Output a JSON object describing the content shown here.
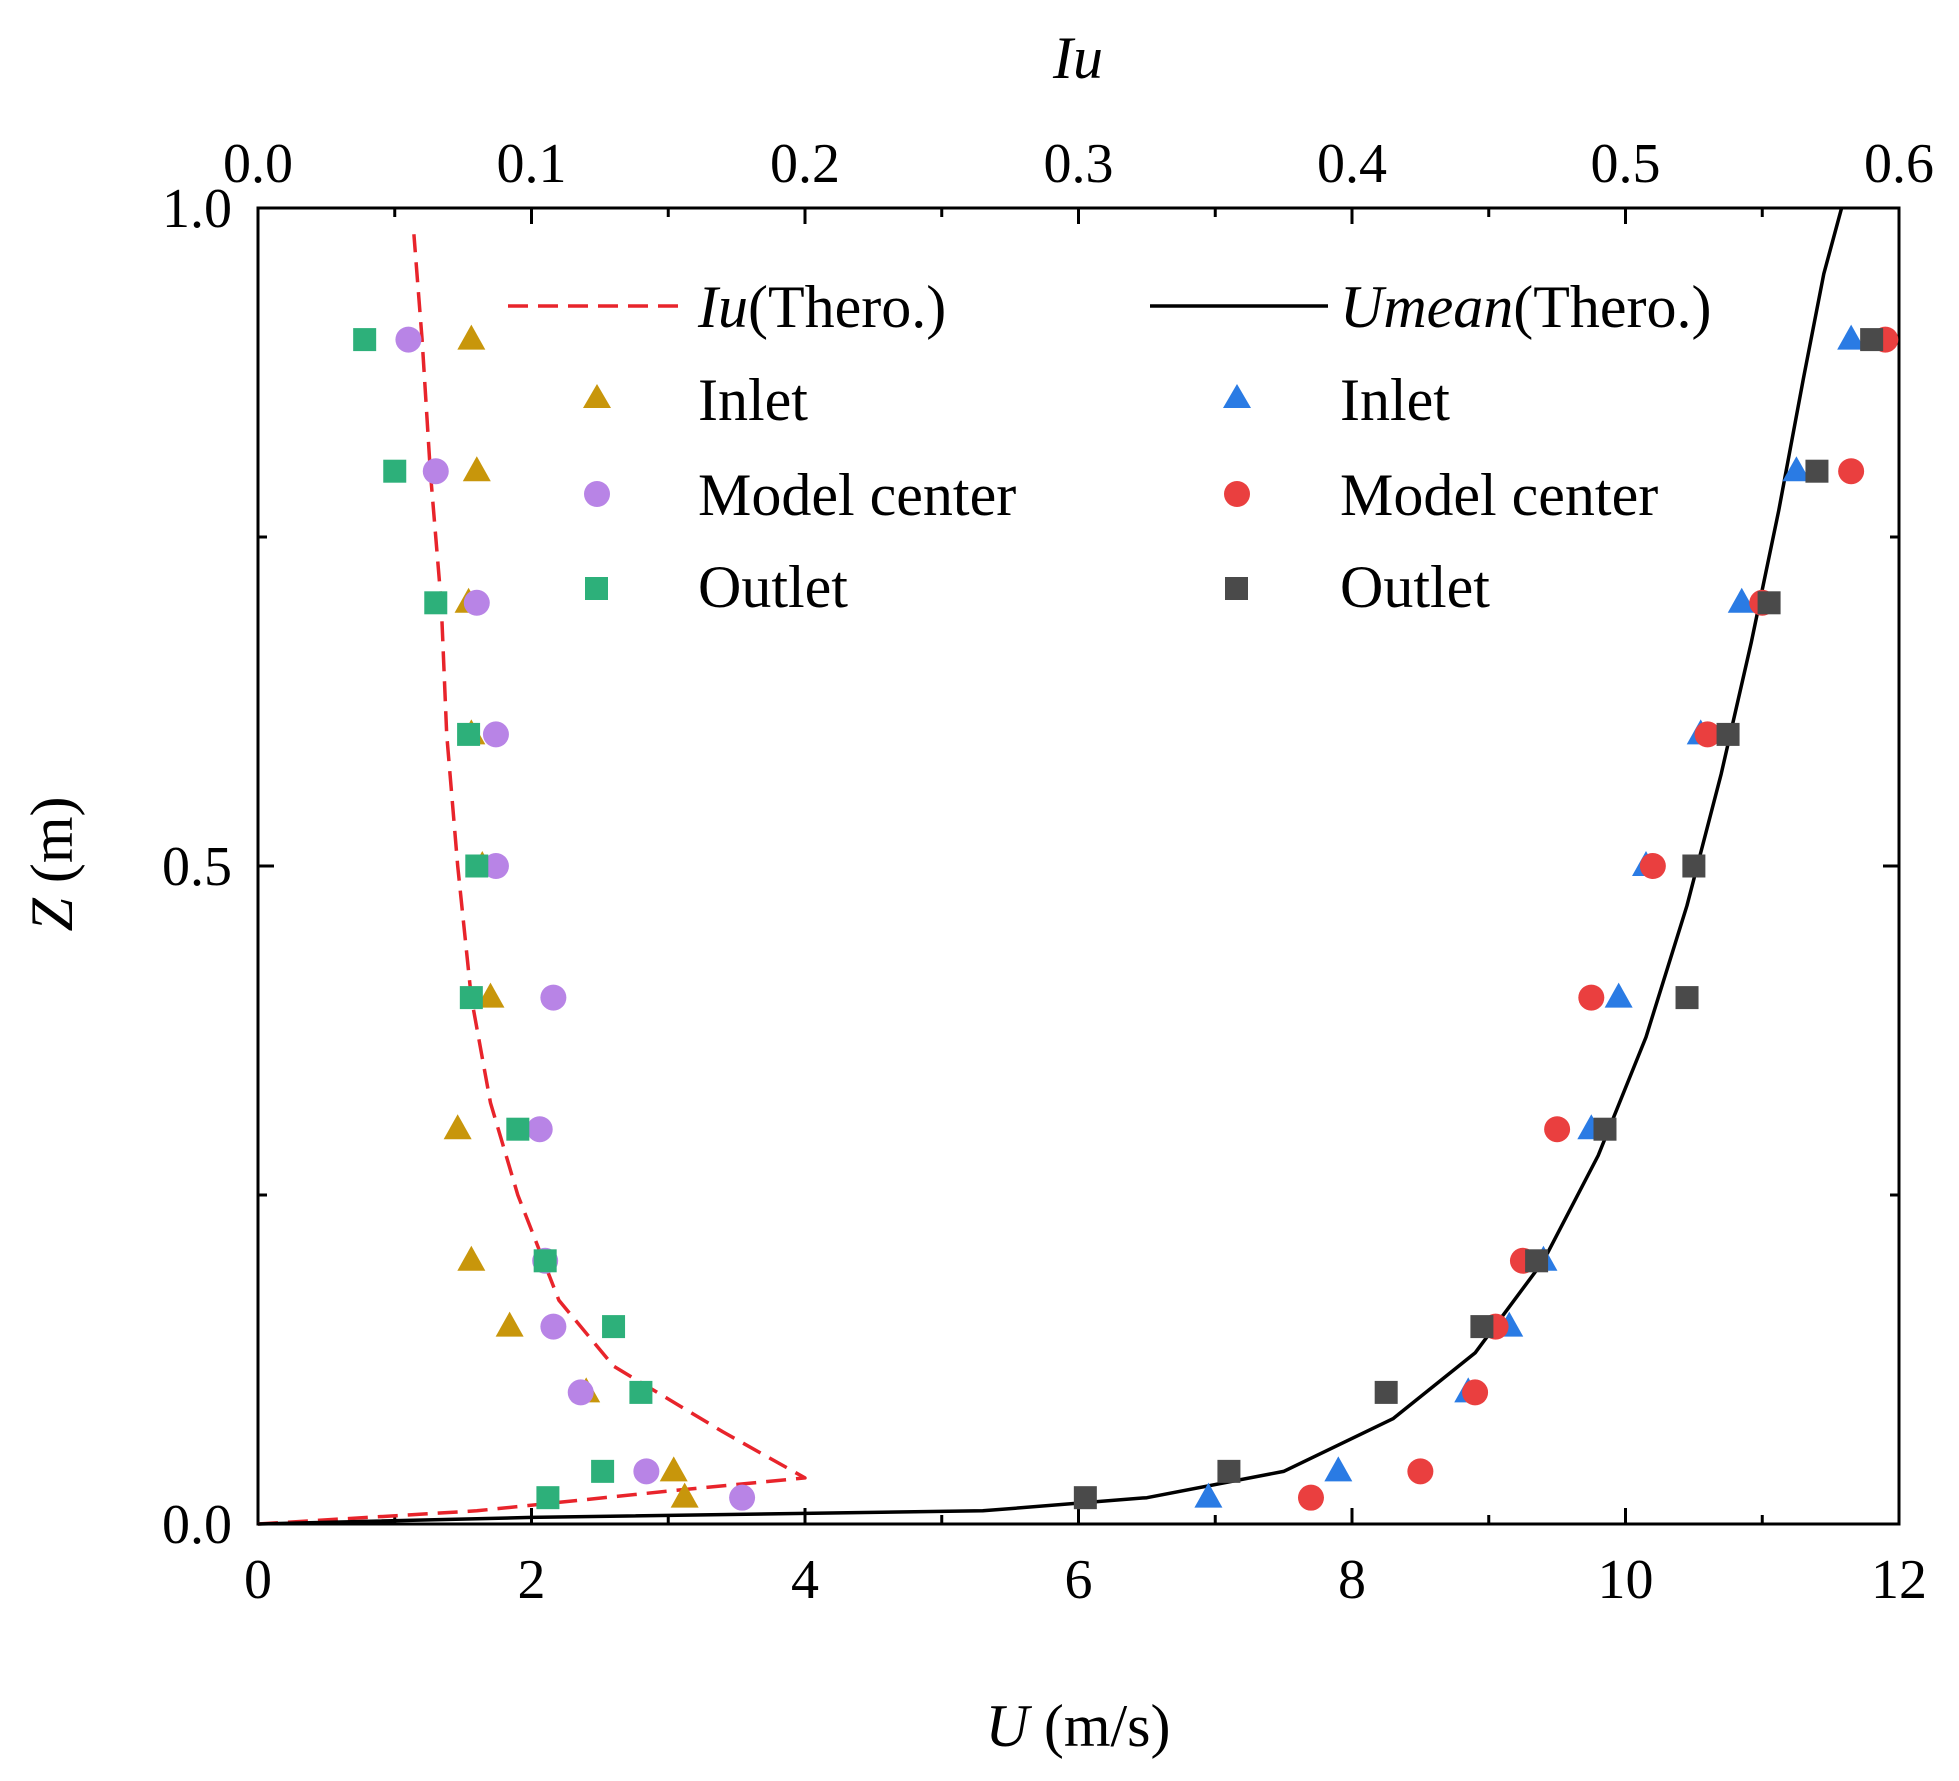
{
  "chart_data": {
    "type": "scatter",
    "title": "",
    "x_bottom": {
      "label_var": "U",
      "label_unit": " (m/s)",
      "range": [
        0,
        12
      ],
      "ticks": [
        0,
        2,
        4,
        6,
        8,
        10,
        12
      ],
      "tick_labels": [
        "0",
        "2",
        "4",
        "6",
        "8",
        "10",
        "12"
      ]
    },
    "x_top": {
      "label": "Iu",
      "range": [
        0,
        0.6
      ],
      "ticks": [
        0,
        0.1,
        0.2,
        0.3,
        0.4,
        0.5,
        0.6
      ],
      "tick_labels": [
        "0.0",
        "0.1",
        "0.2",
        "0.3",
        "0.4",
        "0.5",
        "0.6"
      ]
    },
    "y": {
      "label_var": "Z",
      "label_unit": " (m)",
      "range": [
        0,
        1
      ],
      "ticks": [
        0,
        0.5,
        1
      ],
      "tick_labels": [
        "0.0",
        "0.5",
        "1.0"
      ]
    },
    "legend": {
      "placement": "top",
      "iu_theory": {
        "var": "Iu",
        "suffix": "(Thero.)"
      },
      "umean_theory": {
        "var": "Umean",
        "suffix": "(Thero.)"
      },
      "inlet_label": "Inlet",
      "model_center_label": "Model center",
      "outlet_label": "Outlet"
    },
    "series": [
      {
        "name": "Iu(Thero.)",
        "axis": "top",
        "kind": "line",
        "style": "dashed",
        "color": "#e8242b",
        "x": [
          0.0,
          0.08,
          0.15,
          0.2,
          0.17,
          0.13,
          0.11,
          0.095,
          0.085,
          0.078,
          0.073,
          0.069,
          0.067,
          0.063,
          0.06,
          0.057
        ],
        "y": [
          0.0,
          0.01,
          0.025,
          0.035,
          0.07,
          0.12,
          0.17,
          0.25,
          0.32,
          0.4,
          0.5,
          0.6,
          0.7,
          0.8,
          0.9,
          0.98
        ]
      },
      {
        "name": "Umean(Thero.)",
        "axis": "bottom",
        "kind": "line",
        "style": "solid",
        "color": "#000000",
        "x": [
          0.0,
          2.0,
          5.3,
          6.5,
          7.5,
          8.3,
          8.9,
          9.4,
          9.8,
          10.15,
          10.45,
          10.7,
          10.92,
          11.12,
          11.3,
          11.45,
          11.58
        ],
        "y": [
          0.0,
          0.005,
          0.01,
          0.02,
          0.04,
          0.08,
          0.13,
          0.2,
          0.28,
          0.37,
          0.47,
          0.57,
          0.67,
          0.77,
          0.87,
          0.95,
          1.0
        ]
      },
      {
        "name": "Inlet (Iu)",
        "axis": "top",
        "kind": "marker",
        "marker": "triangle",
        "color": "#c8960b",
        "x": [
          0.078,
          0.08,
          0.077,
          0.078,
          0.082,
          0.085,
          0.073,
          0.078,
          0.092,
          0.12,
          0.152,
          0.156
        ],
        "y": [
          0.9,
          0.8,
          0.7,
          0.6,
          0.5,
          0.4,
          0.3,
          0.2,
          0.15,
          0.1,
          0.04,
          0.02
        ]
      },
      {
        "name": "Model center (Iu)",
        "axis": "top",
        "kind": "marker",
        "marker": "circle",
        "color": "#b884e6",
        "x": [
          0.055,
          0.065,
          0.08,
          0.087,
          0.087,
          0.108,
          0.103,
          0.105,
          0.108,
          0.118,
          0.142,
          0.177
        ],
        "y": [
          0.9,
          0.8,
          0.7,
          0.6,
          0.5,
          0.4,
          0.3,
          0.2,
          0.15,
          0.1,
          0.04,
          0.02
        ]
      },
      {
        "name": "Outlet (Iu)",
        "axis": "top",
        "kind": "marker",
        "marker": "square",
        "color": "#2db07a",
        "x": [
          0.039,
          0.05,
          0.065,
          0.077,
          0.08,
          0.078,
          0.095,
          0.105,
          0.13,
          0.14,
          0.126,
          0.106
        ],
        "y": [
          0.9,
          0.8,
          0.7,
          0.6,
          0.5,
          0.4,
          0.3,
          0.2,
          0.15,
          0.1,
          0.04,
          0.02
        ]
      },
      {
        "name": "Inlet (U)",
        "axis": "bottom",
        "kind": "marker",
        "marker": "triangle",
        "color": "#2a7be4",
        "x": [
          11.65,
          11.25,
          10.85,
          10.55,
          10.15,
          9.95,
          9.75,
          9.4,
          9.15,
          8.85,
          7.9,
          6.95
        ],
        "y": [
          0.9,
          0.8,
          0.7,
          0.6,
          0.5,
          0.4,
          0.3,
          0.2,
          0.15,
          0.1,
          0.04,
          0.02
        ]
      },
      {
        "name": "Model center (U)",
        "axis": "bottom",
        "kind": "marker",
        "marker": "circle",
        "color": "#ea3f3f",
        "x": [
          11.9,
          11.65,
          11.0,
          10.6,
          10.2,
          9.75,
          9.5,
          9.25,
          9.05,
          8.9,
          8.5,
          7.7
        ],
        "y": [
          0.9,
          0.8,
          0.7,
          0.6,
          0.5,
          0.4,
          0.3,
          0.2,
          0.15,
          0.1,
          0.04,
          0.02
        ]
      },
      {
        "name": "Outlet (U)",
        "axis": "bottom",
        "kind": "marker",
        "marker": "square",
        "color": "#4a4a4a",
        "x": [
          11.8,
          11.4,
          11.05,
          10.75,
          10.5,
          10.45,
          9.85,
          9.35,
          8.95,
          8.25,
          7.1,
          6.05
        ],
        "y": [
          0.9,
          0.8,
          0.7,
          0.6,
          0.5,
          0.4,
          0.3,
          0.2,
          0.15,
          0.1,
          0.04,
          0.02
        ]
      }
    ]
  }
}
